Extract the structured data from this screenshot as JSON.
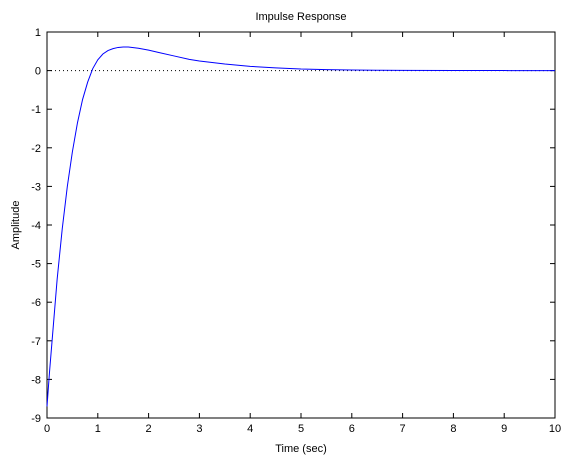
{
  "chart_data": {
    "type": "line",
    "title": "Impulse Response",
    "xlabel": "Time (sec)",
    "ylabel": "Amplitude",
    "xlim": [
      0,
      10
    ],
    "ylim": [
      -9,
      1
    ],
    "xticks": [
      0,
      1,
      2,
      3,
      4,
      5,
      6,
      7,
      8,
      9,
      10
    ],
    "yticks": [
      1,
      0,
      -1,
      -2,
      -3,
      -4,
      -5,
      -6,
      -7,
      -8,
      -9
    ],
    "xtick_labels": [
      "0",
      "1",
      "2",
      "3",
      "4",
      "5",
      "6",
      "7",
      "8",
      "9",
      "10"
    ],
    "ytick_labels": [
      "1",
      "0",
      "-1",
      "-2",
      "-3",
      "-4",
      "-5",
      "-6",
      "-7",
      "-8",
      "-9"
    ],
    "grid": false,
    "zero_line": {
      "y": 0,
      "style": "dotted",
      "color": "#000000"
    },
    "series": [
      {
        "color": "#0000ff",
        "x": [
          0,
          0.05,
          0.1,
          0.15,
          0.2,
          0.3,
          0.4,
          0.5,
          0.6,
          0.7,
          0.8,
          0.9,
          1.0,
          1.1,
          1.2,
          1.3,
          1.4,
          1.5,
          1.6,
          1.8,
          2.0,
          2.2,
          2.5,
          2.8,
          3.0,
          3.5,
          4.0,
          4.5,
          5.0,
          5.5,
          6.0,
          6.5,
          7.0,
          8.0,
          9.0,
          10.0
        ],
        "y": [
          -8.7,
          -7.8,
          -7.0,
          -6.2,
          -5.4,
          -4.1,
          -3.0,
          -2.1,
          -1.35,
          -0.75,
          -0.3,
          0.05,
          0.28,
          0.43,
          0.52,
          0.57,
          0.6,
          0.61,
          0.61,
          0.58,
          0.53,
          0.47,
          0.38,
          0.29,
          0.25,
          0.17,
          0.11,
          0.07,
          0.04,
          0.025,
          0.015,
          0.01,
          0.005,
          0.002,
          0.001,
          0.0
        ]
      }
    ]
  }
}
